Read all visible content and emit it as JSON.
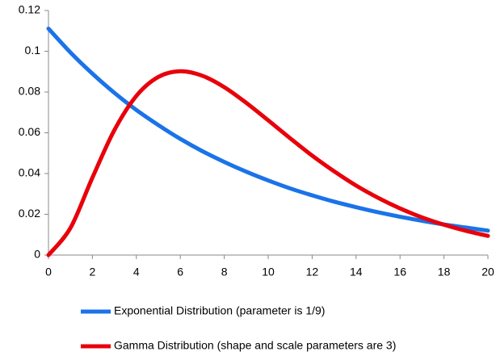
{
  "chart_data": {
    "type": "line",
    "x": [
      0,
      1,
      2,
      3,
      4,
      5,
      6,
      7,
      8,
      9,
      10,
      11,
      12,
      13,
      14,
      15,
      16,
      17,
      18,
      19,
      20
    ],
    "series": [
      {
        "name": "Exponential Distribution (parameter is 1/9)",
        "color": "#1a73e8",
        "values": [
          0.1111,
          0.0994,
          0.089,
          0.0796,
          0.0712,
          0.0638,
          0.057,
          0.051,
          0.0457,
          0.0409,
          0.0366,
          0.0327,
          0.0293,
          0.0262,
          0.0235,
          0.021,
          0.0188,
          0.0168,
          0.015,
          0.0135,
          0.012
        ]
      },
      {
        "name": "Gamma Distribution (shape and scale parameters are 3)",
        "color": "#e8000b",
        "values": [
          0,
          0.0133,
          0.038,
          0.0613,
          0.0781,
          0.0874,
          0.0902,
          0.088,
          0.0824,
          0.0747,
          0.0661,
          0.0573,
          0.0488,
          0.0411,
          0.0341,
          0.0281,
          0.0229,
          0.0185,
          0.0149,
          0.0119,
          0.0094
        ]
      }
    ],
    "xlim": [
      0,
      20
    ],
    "xticks": [
      0,
      2,
      4,
      6,
      8,
      10,
      12,
      14,
      16,
      18,
      20
    ],
    "ylim": [
      0,
      0.12
    ],
    "yticks": [
      0,
      0.02,
      0.04,
      0.06,
      0.08,
      0.1,
      0.12
    ],
    "grid": false,
    "legend": "bottom"
  }
}
